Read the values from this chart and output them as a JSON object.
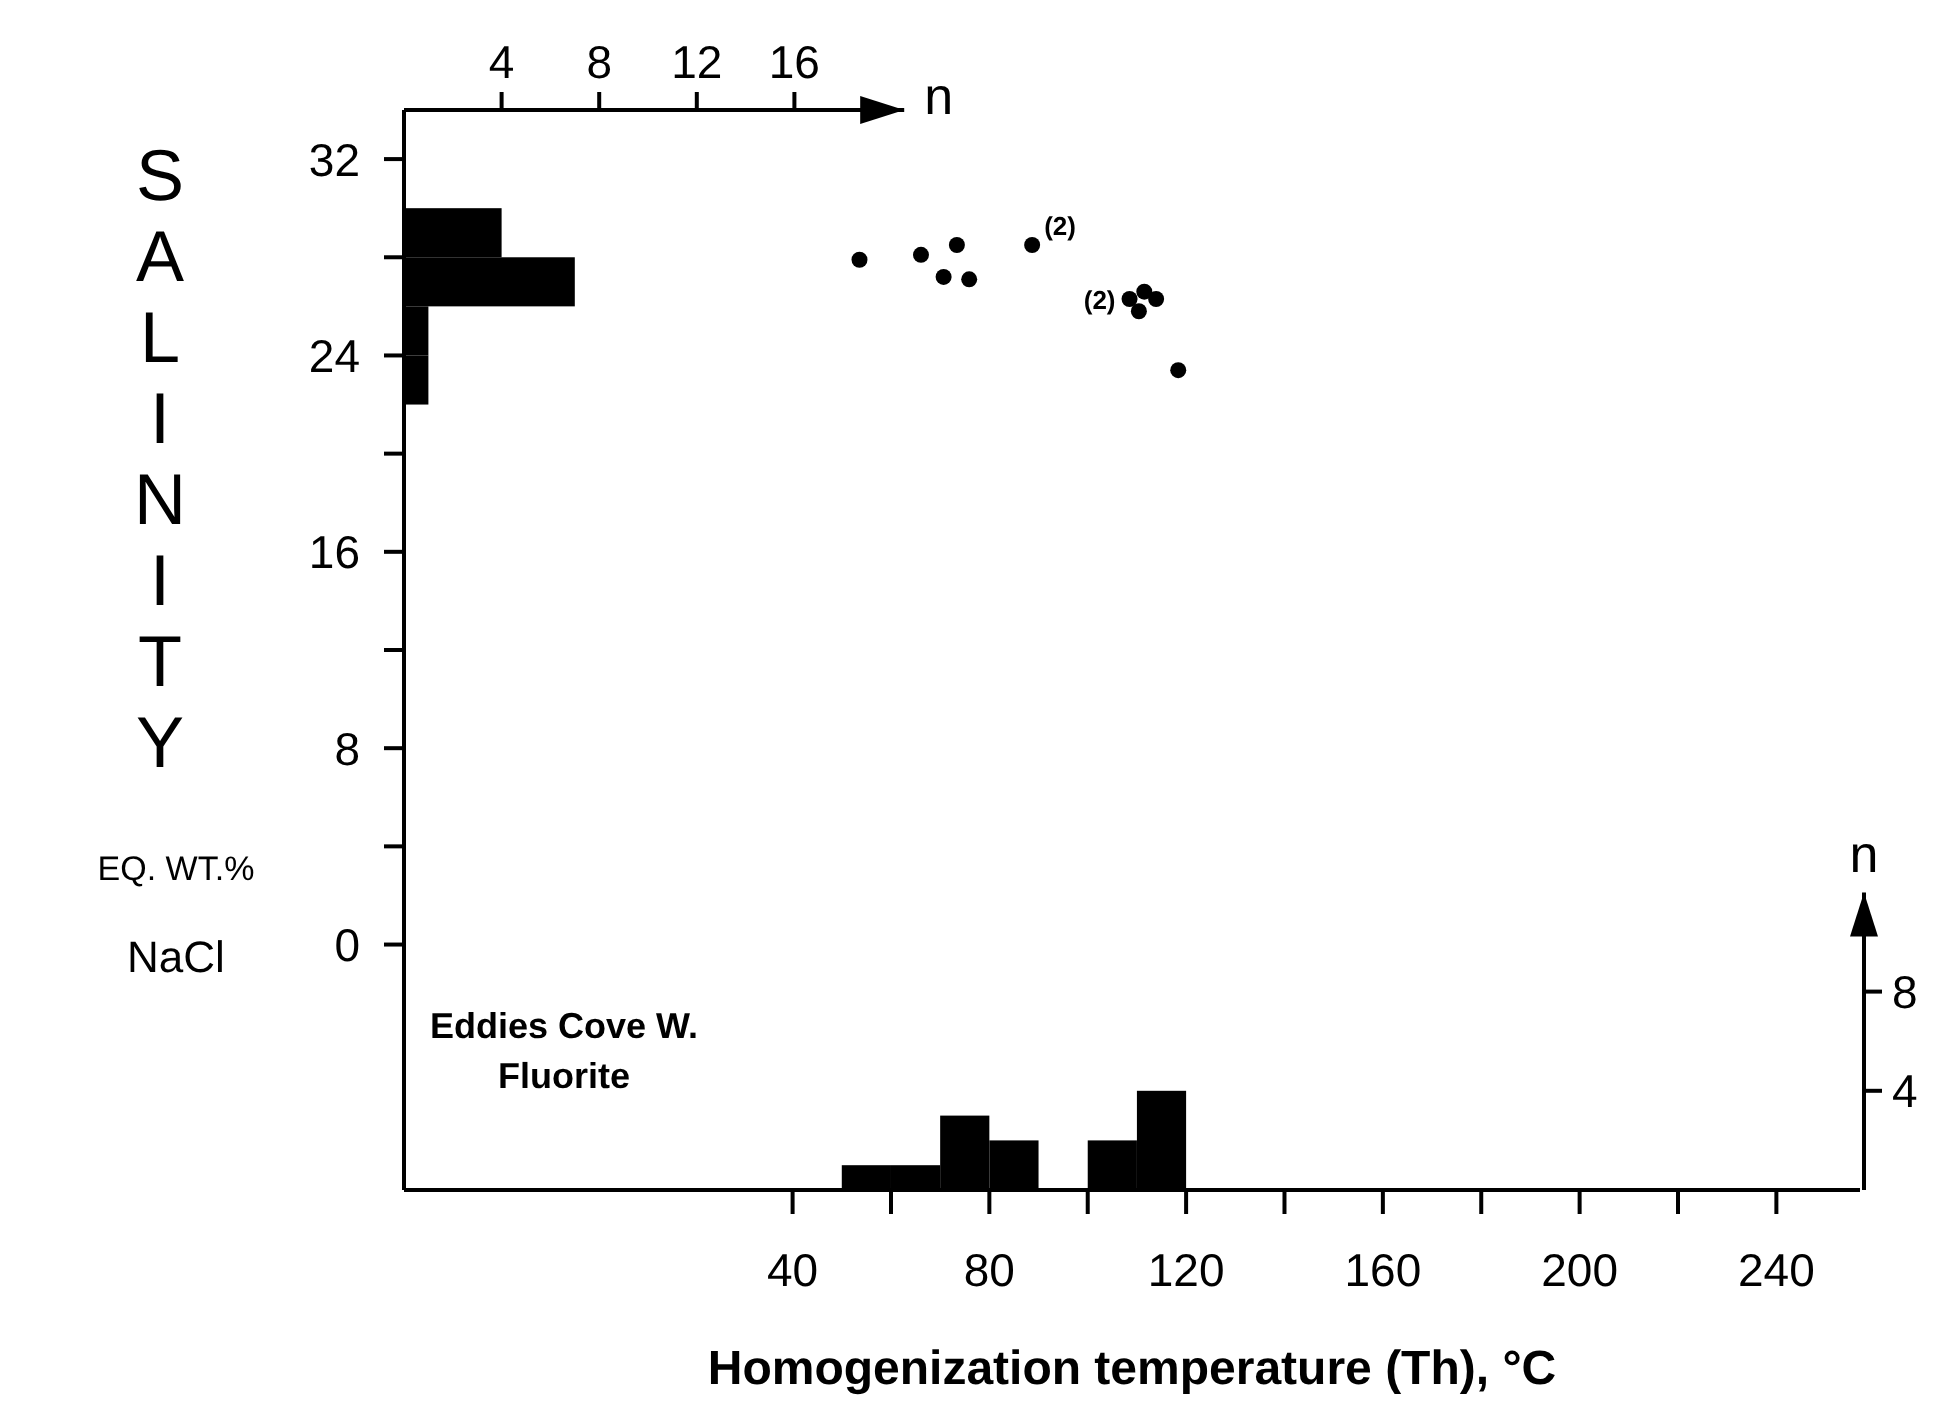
{
  "chart_data": [
    {
      "type": "scatter",
      "xlabel": "Homogenization temperature (Th), °C",
      "ylabel": "SALINITY EQ. WT.% NaCl",
      "x": [
        53.6,
        66.1,
        73.4,
        70.7,
        75.9,
        88.7,
        108.5,
        111.5,
        113.9,
        110.4,
        118.4
      ],
      "values": [
        27.9,
        28.1,
        28.5,
        27.2,
        27.1,
        28.5,
        26.3,
        26.6,
        26.3,
        25.8,
        23.4
      ],
      "color": "#000000",
      "marker": "circle",
      "xlim": [
        -39,
        257
      ],
      "ylim": [
        -10,
        34
      ],
      "xticks": [
        40,
        {
          "value": 60,
          "label": null
        },
        80,
        {
          "value": 100,
          "label": null
        },
        120,
        {
          "value": 140,
          "label": null
        },
        160,
        {
          "value": 180,
          "label": null
        },
        200,
        {
          "value": 220,
          "label": null
        },
        240
      ],
      "yticks": [
        0,
        {
          "value": 4,
          "label": null
        },
        8,
        {
          "value": 12,
          "label": null
        },
        16,
        {
          "value": 20,
          "label": null
        },
        24,
        {
          "value": 28,
          "label": null
        },
        32
      ],
      "annotations": [
        {
          "text": "(2)",
          "x": 88.7,
          "y": 28.5
        },
        {
          "text": "(2)",
          "x": 108.5,
          "y": 26.3
        },
        "Eddies Cove W.\nFluorite"
      ]
    },
    {
      "type": "histogram",
      "orientation": "horizontal",
      "bins": [
        22,
        24,
        26,
        28,
        30
      ],
      "values": [
        1,
        1,
        7,
        4
      ],
      "color": "#000000",
      "xlabel": "n",
      "xlim": [
        0,
        20.5
      ],
      "xticks": [
        4,
        8,
        12,
        16
      ],
      "ylim": [
        -10,
        34
      ],
      "tick_labels": "x"
    },
    {
      "type": "histogram",
      "bins": [
        50,
        60,
        70,
        80,
        90,
        100,
        110,
        120
      ],
      "values": [
        1,
        1,
        3,
        2,
        0,
        2,
        4
      ],
      "color": "#000000",
      "ylabel": "n",
      "xlim": [
        -39,
        257
      ],
      "ylim": [
        0,
        12
      ],
      "yticks": [
        4,
        8
      ],
      "tick_labels": "y"
    }
  ]
}
